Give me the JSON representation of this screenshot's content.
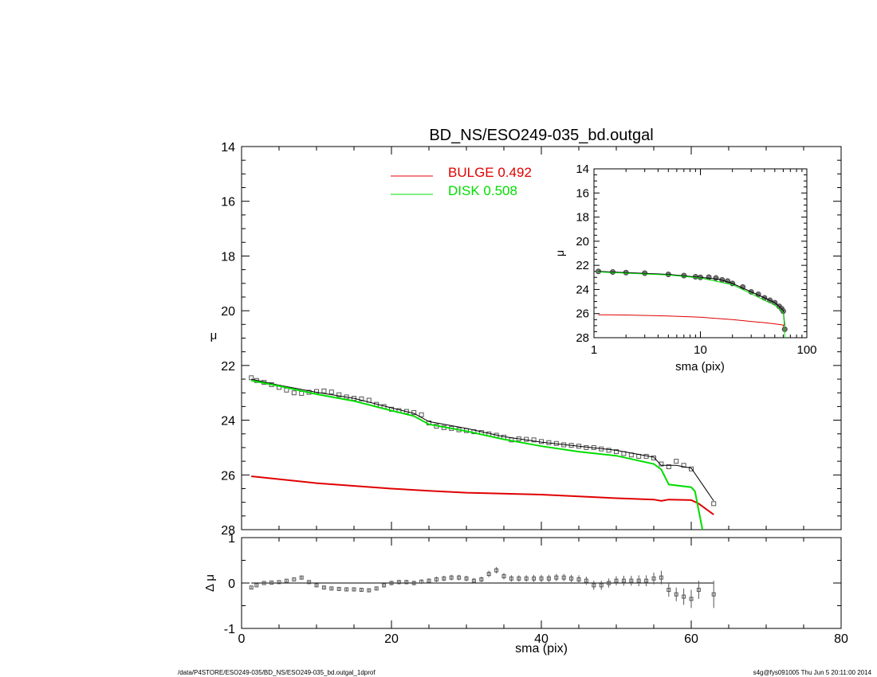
{
  "chart_data": [
    {
      "type": "line",
      "title": "BD_NS/ESO249-035_bd.outgal",
      "xlabel": "",
      "ylabel": "μ",
      "xlim": [
        0,
        80
      ],
      "ylim": [
        28,
        14
      ],
      "y_reversed": true,
      "y_ticks": [
        "14",
        "16",
        "18",
        "20",
        "22",
        "24",
        "26",
        "28"
      ],
      "legend": {
        "placement": "top-center",
        "entries": [
          {
            "name": "BULGE  0.492",
            "color": "#e00000"
          },
          {
            "name": "DISK  0.508",
            "color": "#00dd00"
          }
        ]
      },
      "series": [
        {
          "name": "data",
          "marker": "square",
          "color": "#555555",
          "x": [
            1.3,
            2,
            3,
            4,
            5,
            6,
            7,
            8,
            9,
            10,
            11,
            12,
            13,
            14,
            15,
            16,
            17,
            18,
            19,
            20,
            21,
            22,
            23,
            24,
            25,
            26,
            27,
            28,
            29,
            30,
            31,
            32,
            33,
            34,
            35,
            36,
            37,
            38,
            39,
            40,
            41,
            42,
            43,
            44,
            45,
            46,
            47,
            48,
            49,
            50,
            51,
            52,
            53,
            54,
            55,
            56,
            57,
            58,
            59,
            60,
            63
          ],
          "y": [
            22.45,
            22.55,
            22.62,
            22.7,
            22.8,
            22.9,
            23.0,
            23.02,
            22.98,
            22.95,
            22.93,
            22.97,
            23.07,
            23.15,
            23.2,
            23.22,
            23.27,
            23.42,
            23.5,
            23.6,
            23.65,
            23.68,
            23.72,
            23.8,
            24.1,
            24.22,
            24.27,
            24.3,
            24.35,
            24.38,
            24.42,
            24.45,
            24.5,
            24.55,
            24.62,
            24.72,
            24.68,
            24.7,
            24.72,
            24.78,
            24.82,
            24.85,
            24.9,
            24.92,
            24.95,
            25.0,
            25.0,
            25.05,
            25.1,
            25.15,
            25.22,
            25.27,
            25.32,
            25.32,
            25.38,
            25.6,
            25.7,
            25.5,
            25.65,
            25.78,
            27.05
          ]
        },
        {
          "name": "model",
          "color": "#000000",
          "x": [
            1.3,
            5,
            10,
            15,
            20,
            23,
            25,
            30,
            35,
            40,
            45,
            50,
            55,
            56,
            58,
            60,
            63
          ],
          "y": [
            22.5,
            22.72,
            22.98,
            23.2,
            23.55,
            23.75,
            24.05,
            24.3,
            24.6,
            24.8,
            24.95,
            25.1,
            25.35,
            25.65,
            25.65,
            25.75,
            26.95
          ]
        },
        {
          "name": "BULGE  0.492",
          "color": "#e00000",
          "x": [
            1.3,
            10,
            20,
            25,
            30,
            40,
            50,
            55,
            56,
            57,
            60,
            61,
            63
          ],
          "y": [
            26.05,
            26.3,
            26.5,
            26.58,
            26.65,
            26.72,
            26.85,
            26.9,
            26.95,
            26.9,
            26.92,
            27.05,
            27.45
          ]
        },
        {
          "name": "DISK  0.508",
          "color": "#00dd00",
          "x": [
            1.3,
            5,
            10,
            15,
            20,
            23,
            25,
            30,
            35,
            40,
            45,
            50,
            55,
            56,
            57,
            60,
            60.5,
            61.5
          ],
          "y": [
            22.55,
            22.75,
            23.05,
            23.3,
            23.65,
            23.85,
            24.15,
            24.4,
            24.7,
            24.95,
            25.15,
            25.3,
            25.6,
            25.8,
            26.35,
            26.45,
            26.6,
            28.0
          ]
        }
      ]
    },
    {
      "type": "scatter",
      "xlabel": "sma (pix)",
      "ylabel": "Δ μ",
      "xlim": [
        0,
        80
      ],
      "x_ticks": [
        "0",
        "20",
        "40",
        "60",
        "80"
      ],
      "ylim": [
        -1,
        1
      ],
      "y_ticks": [
        "1",
        "0",
        "-1"
      ],
      "zero_line": {
        "x": [
          1.3,
          63
        ],
        "y": 0
      },
      "series": [
        {
          "name": "residual",
          "marker": "square-with-errorbar",
          "color": "#555555",
          "x": [
            1.3,
            2,
            3,
            4,
            5,
            6,
            7,
            8,
            9,
            10,
            11,
            12,
            13,
            14,
            15,
            16,
            17,
            18,
            19,
            20,
            21,
            22,
            23,
            24,
            25,
            26,
            27,
            28,
            29,
            30,
            31,
            32,
            33,
            34,
            35,
            36,
            37,
            38,
            39,
            40,
            41,
            42,
            43,
            44,
            45,
            46,
            47,
            48,
            49,
            50,
            51,
            52,
            53,
            54,
            55,
            56,
            57,
            58,
            59,
            60,
            61,
            63
          ],
          "y": [
            -0.1,
            -0.05,
            0,
            0.01,
            0.02,
            0.05,
            0.08,
            0.12,
            0.02,
            -0.05,
            -0.1,
            -0.12,
            -0.13,
            -0.14,
            -0.14,
            -0.15,
            -0.16,
            -0.12,
            -0.05,
            0.0,
            0.02,
            0.02,
            0.0,
            0.03,
            0.05,
            0.08,
            0.1,
            0.12,
            0.12,
            0.1,
            0.05,
            0.08,
            0.2,
            0.28,
            0.15,
            0.1,
            0.1,
            0.1,
            0.1,
            0.1,
            0.1,
            0.12,
            0.12,
            0.1,
            0.08,
            0.05,
            -0.05,
            -0.05,
            0.0,
            0.05,
            0.05,
            0.05,
            0.05,
            0.05,
            0.1,
            0.12,
            -0.15,
            -0.25,
            -0.3,
            -0.35,
            -0.15,
            -0.25
          ],
          "err": [
            0.02,
            0.02,
            0.02,
            0.02,
            0.02,
            0.02,
            0.02,
            0.03,
            0.03,
            0.03,
            0.03,
            0.03,
            0.03,
            0.03,
            0.04,
            0.04,
            0.04,
            0.04,
            0.05,
            0.05,
            0.05,
            0.05,
            0.05,
            0.05,
            0.05,
            0.06,
            0.06,
            0.06,
            0.06,
            0.06,
            0.06,
            0.06,
            0.07,
            0.07,
            0.07,
            0.07,
            0.07,
            0.07,
            0.08,
            0.08,
            0.08,
            0.08,
            0.08,
            0.08,
            0.09,
            0.09,
            0.1,
            0.1,
            0.1,
            0.1,
            0.11,
            0.11,
            0.12,
            0.12,
            0.13,
            0.15,
            0.15,
            0.15,
            0.18,
            0.2,
            0.2,
            0.3
          ]
        }
      ]
    },
    {
      "type": "line",
      "inset": true,
      "xlabel": "sma (pix)",
      "ylabel": "μ",
      "xscale": "log",
      "xlim": [
        1,
        100
      ],
      "x_ticks": [
        "1",
        "10",
        "100"
      ],
      "ylim": [
        28,
        14
      ],
      "y_ticks": [
        "14",
        "16",
        "18",
        "20",
        "22",
        "24",
        "26",
        "28"
      ],
      "series": [
        {
          "name": "data",
          "marker": "circle",
          "color": "#444444",
          "x": [
            1.1,
            1.5,
            2,
            3,
            5,
            7,
            9,
            10,
            12,
            14,
            16,
            18,
            20,
            25,
            30,
            35,
            40,
            45,
            50,
            55,
            58,
            60,
            62
          ],
          "y": [
            22.5,
            22.55,
            22.6,
            22.65,
            22.75,
            22.85,
            22.95,
            23.0,
            22.98,
            23.05,
            23.2,
            23.3,
            23.5,
            23.8,
            24.2,
            24.4,
            24.7,
            24.9,
            25.1,
            25.4,
            25.6,
            25.8,
            27.3
          ]
        },
        {
          "name": "model",
          "color": "#000000",
          "x": [
            1.1,
            2,
            5,
            10,
            15,
            20,
            30,
            40,
            50,
            55,
            60,
            62
          ],
          "y": [
            22.5,
            22.6,
            22.75,
            23.0,
            23.15,
            23.5,
            24.2,
            24.7,
            25.1,
            25.4,
            25.75,
            27.0
          ]
        },
        {
          "name": "bulge",
          "color": "#e00000",
          "x": [
            1.1,
            2,
            5,
            10,
            20,
            30,
            40,
            50,
            60,
            62
          ],
          "y": [
            26.1,
            26.12,
            26.2,
            26.3,
            26.5,
            26.65,
            26.75,
            26.85,
            26.95,
            27.4
          ]
        },
        {
          "name": "disk",
          "color": "#00dd00",
          "x": [
            1.1,
            2,
            5,
            10,
            20,
            30,
            40,
            50,
            55,
            60,
            61,
            62
          ],
          "y": [
            22.55,
            22.65,
            22.8,
            23.05,
            23.6,
            24.35,
            24.9,
            25.3,
            25.6,
            25.9,
            26.5,
            28.0
          ]
        }
      ]
    }
  ],
  "footer": {
    "left": "/data/P4STORE/ESO249-035/BD_NS/ESO249-035_bd.outgal_1dprof",
    "right": "s4g@fys091005  Thu Jun  5 20:11:00 2014"
  }
}
